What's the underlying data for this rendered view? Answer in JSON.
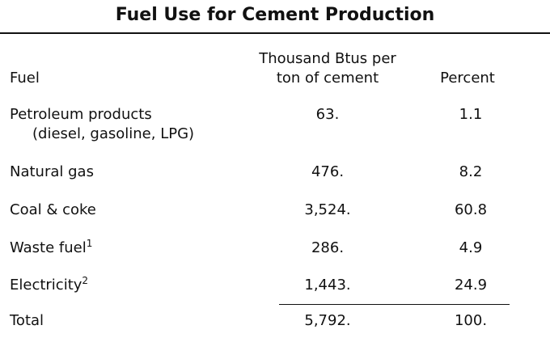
{
  "title": "Fuel Use for Cement Production",
  "table": {
    "headers": {
      "fuel": "Fuel",
      "btus": [
        "Thousand Btus per",
        "ton of cement"
      ],
      "percent": "Percent"
    },
    "rows": [
      {
        "fuel": [
          "Petroleum products",
          "(diesel, gasoline, LPG)"
        ],
        "btus": "63.",
        "percent": "1.1"
      },
      {
        "fuel": [
          "Natural gas"
        ],
        "btus": "476.",
        "percent": "8.2"
      },
      {
        "fuel": [
          "Coal & coke"
        ],
        "btus": "3,524.",
        "percent": "60.8"
      },
      {
        "fuel": [
          "Waste fuel"
        ],
        "note": "1",
        "btus": "286.",
        "percent": "4.9"
      },
      {
        "fuel": [
          "Electricity"
        ],
        "note": "2",
        "btus": "1,443.",
        "percent": "24.9"
      }
    ],
    "total": {
      "fuel": "Total",
      "btus": "5,792.",
      "percent": "100."
    }
  }
}
